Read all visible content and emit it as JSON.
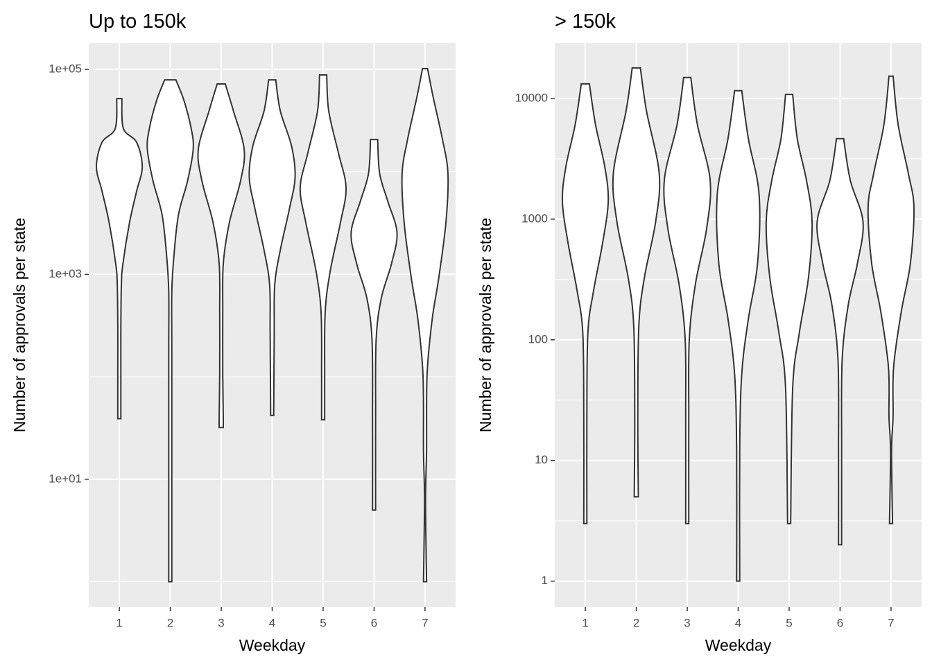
{
  "chart_data": [
    {
      "type": "violin",
      "title": "Up to 150k",
      "x_label": "Weekday",
      "y_label": "Number of approvals per state",
      "categories": [
        "1",
        "2",
        "3",
        "4",
        "5",
        "6",
        "7"
      ],
      "xlim": [
        0.4,
        7.6
      ],
      "log_scale": true,
      "grid": true,
      "ylim": [
        0.566,
        181000
      ],
      "yticks": [
        {
          "value": 100000,
          "label": "1e+05"
        },
        {
          "value": 1000,
          "label": "1e+03"
        },
        {
          "value": 10,
          "label": "1e+01"
        }
      ],
      "minor_yticks": [
        10000,
        100,
        1
      ],
      "fill": "#ffffff",
      "line_color": "#333333",
      "violins": [
        {
          "y": [
            51900,
            26500,
            19400,
            11200,
            6500,
            3200,
            1260,
            790,
            310,
            120,
            39
          ],
          "width": [
            0.05,
            0.08,
            0.34,
            0.45,
            0.34,
            0.2,
            0.07,
            0.04,
            0.03,
            0.03,
            0.03
          ]
        },
        {
          "y": [
            79000,
            49500,
            26500,
            16600,
            8200,
            3800,
            1480,
            680,
            194,
            41,
            8.6,
            1
          ],
          "width": [
            0.11,
            0.27,
            0.41,
            0.45,
            0.34,
            0.16,
            0.07,
            0.03,
            0.03,
            0.03,
            0.03,
            0.03
          ]
        },
        {
          "y": [
            72100,
            39200,
            16600,
            8200,
            3200,
            1260,
            424,
            104,
            41,
            32
          ],
          "width": [
            0.08,
            0.24,
            0.45,
            0.38,
            0.16,
            0.04,
            0.03,
            0.03,
            0.04,
            0.04
          ]
        },
        {
          "y": [
            79000,
            39200,
            17900,
            8900,
            4400,
            1730,
            790,
            265,
            42
          ],
          "width": [
            0.07,
            0.16,
            0.38,
            0.45,
            0.34,
            0.16,
            0.05,
            0.04,
            0.03
          ]
        },
        {
          "y": [
            88300,
            39200,
            15300,
            7000,
            3200,
            1080,
            424,
            104,
            38
          ],
          "width": [
            0.07,
            0.11,
            0.3,
            0.45,
            0.34,
            0.14,
            0.04,
            0.03,
            0.03
          ]
        },
        {
          "y": [
            20700,
            9600,
            5150,
            2550,
            1260,
            580,
            227,
            41,
            5
          ],
          "width": [
            0.07,
            0.11,
            0.27,
            0.45,
            0.34,
            0.14,
            0.04,
            0.03,
            0.03
          ]
        },
        {
          "y": [
            101600,
            53600,
            21000,
            9600,
            3200,
            925,
            362,
            104,
            18.7,
            6.3,
            1
          ],
          "width": [
            0.05,
            0.16,
            0.34,
            0.45,
            0.41,
            0.27,
            0.14,
            0.04,
            0.03,
            0.01,
            0.03
          ]
        }
      ]
    },
    {
      "type": "violin",
      "title": "> 150k",
      "x_label": "Weekday",
      "y_label": "Number of approvals per state",
      "categories": [
        "1",
        "2",
        "3",
        "4",
        "5",
        "6",
        "7"
      ],
      "xlim": [
        0.4,
        7.6
      ],
      "log_scale": true,
      "grid": true,
      "ylim": [
        0.61,
        28800
      ],
      "yticks": [
        1,
        10,
        100,
        1000,
        10000
      ],
      "minor_yticks": [
        3.16228,
        31.6228,
        316.228,
        3162.28
      ],
      "fill": "#ffffff",
      "line_color": "#333333",
      "violins": [
        {
          "y": [
            13200,
            6050,
            2740,
            1410,
            638,
            253,
            114,
            23,
            3
          ],
          "width": [
            0.08,
            0.2,
            0.38,
            0.45,
            0.34,
            0.16,
            0.05,
            0.03,
            0.03
          ]
        },
        {
          "y": [
            17900,
            7890,
            2390,
            950,
            329,
            130,
            23,
            5
          ],
          "width": [
            0.08,
            0.2,
            0.45,
            0.38,
            0.16,
            0.05,
            0.03,
            0.04
          ]
        },
        {
          "y": [
            14900,
            6050,
            2100,
            832,
            288,
            100,
            23,
            3
          ],
          "width": [
            0.07,
            0.2,
            0.45,
            0.38,
            0.16,
            0.04,
            0.03,
            0.03
          ]
        },
        {
          "y": [
            11600,
            4640,
            1610,
            429,
            149,
            52,
            12,
            1
          ],
          "width": [
            0.07,
            0.2,
            0.41,
            0.38,
            0.2,
            0.07,
            0.03,
            0.03
          ]
        },
        {
          "y": [
            10800,
            4640,
            2100,
            950,
            329,
            114,
            40,
            3
          ],
          "width": [
            0.07,
            0.16,
            0.34,
            0.45,
            0.38,
            0.2,
            0.07,
            0.03
          ]
        },
        {
          "y": [
            4640,
            2100,
            950,
            429,
            194,
            67,
            12,
            2
          ],
          "width": [
            0.07,
            0.2,
            0.45,
            0.34,
            0.16,
            0.04,
            0.03,
            0.03
          ]
        },
        {
          "y": [
            15300,
            6050,
            2390,
            1240,
            429,
            170,
            59,
            23,
            12,
            3
          ],
          "width": [
            0.04,
            0.14,
            0.34,
            0.45,
            0.38,
            0.2,
            0.05,
            0.04,
            0.01,
            0.03
          ]
        }
      ]
    }
  ]
}
